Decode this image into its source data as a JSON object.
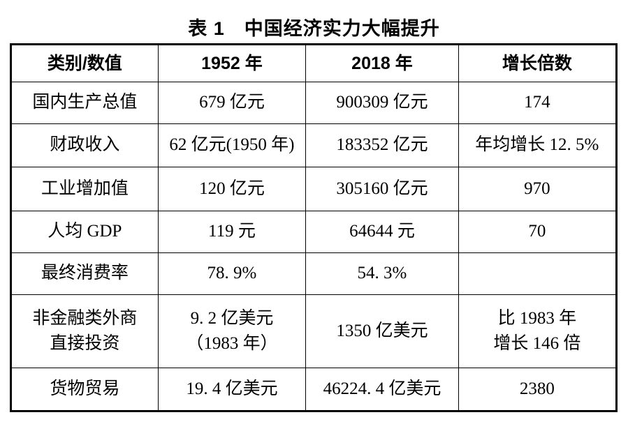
{
  "page": {
    "title": "表 1　中国经济实力大幅提升"
  },
  "table": {
    "headers": [
      "类别/数值",
      "1952 年",
      "2018 年",
      "增长倍数"
    ],
    "rows": [
      {
        "category": "国内生产总值",
        "v1952": "679 亿元",
        "v2018": "900309 亿元",
        "growth": "174"
      },
      {
        "category": "财政收入",
        "v1952": "62 亿元(1950 年)",
        "v2018": "183352 亿元",
        "growth": "年均增长 12. 5%"
      },
      {
        "category": "工业增加值",
        "v1952": "120 亿元",
        "v2018": "305160 亿元",
        "growth": "970"
      },
      {
        "category": "人均 GDP",
        "v1952": "119 元",
        "v2018": "64644 元",
        "growth": "70"
      },
      {
        "category": "最终消费率",
        "v1952": "78. 9%",
        "v2018": "54. 3%",
        "growth": ""
      },
      {
        "category": "非金融类外商\n直接投资",
        "v1952": "9. 2 亿美元\n（1983 年）",
        "v2018": "1350 亿美元",
        "growth": "比 1983 年\n增长 146 倍"
      },
      {
        "category": "货物贸易",
        "v1952": "19. 4 亿美元",
        "v2018": "46224. 4 亿美元",
        "growth": "2380"
      }
    ]
  },
  "colors": {
    "background": "#ffffff",
    "text": "#000000",
    "border": "#000000"
  }
}
